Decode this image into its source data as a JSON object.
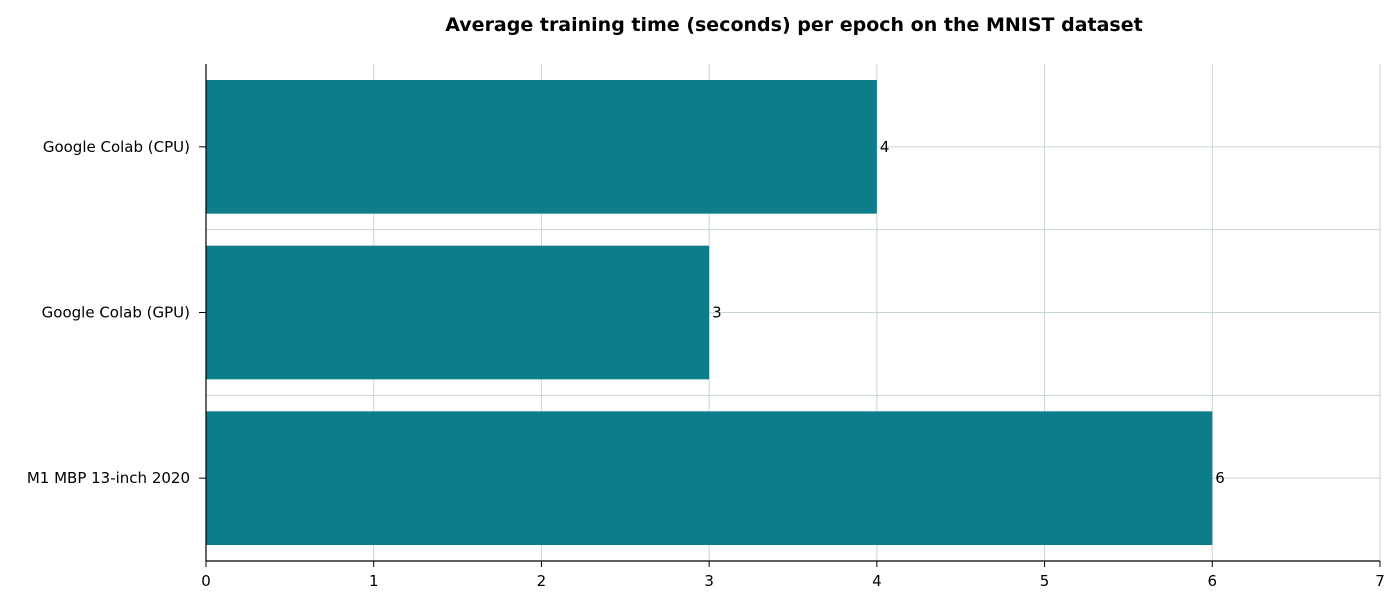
{
  "chart_data": {
    "type": "bar",
    "orientation": "horizontal",
    "title": "Average training time (seconds) per epoch on the MNIST dataset",
    "xlabel": "",
    "ylabel": "",
    "categories": [
      "Google Colab (CPU)",
      "Google Colab (GPU)",
      "M1 MBP 13-inch 2020"
    ],
    "values": [
      4,
      3,
      6
    ],
    "data_labels": [
      "4",
      "3",
      "6"
    ],
    "xlim": [
      0,
      7
    ],
    "x_ticks": [
      0,
      1,
      2,
      3,
      4,
      5,
      6,
      7
    ],
    "grid": true,
    "bar_color": "#0e7d8b"
  }
}
